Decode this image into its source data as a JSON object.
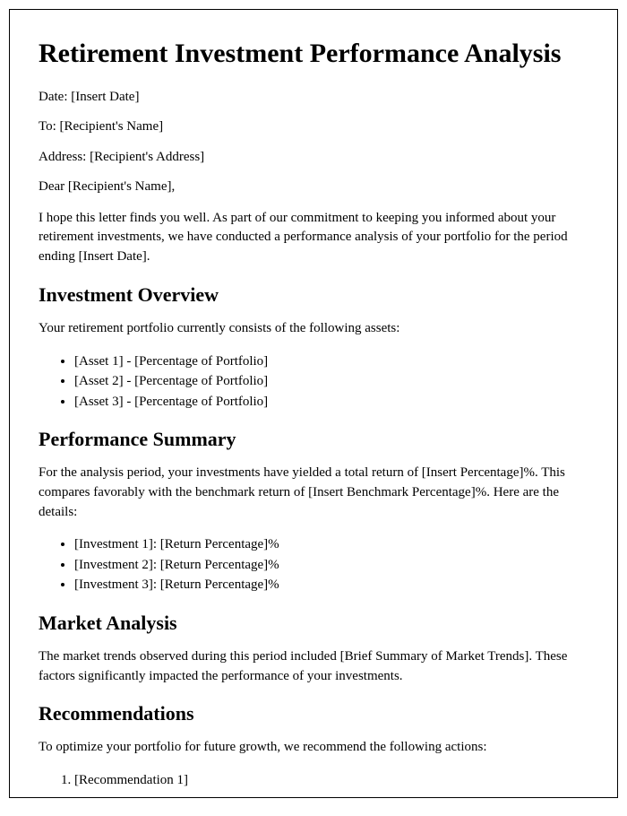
{
  "title": "Retirement Investment Performance Analysis",
  "meta": {
    "date": "Date: [Insert Date]",
    "to": "To: [Recipient's Name]",
    "address": "Address: [Recipient's Address]",
    "salutation": "Dear [Recipient's Name],"
  },
  "intro": "I hope this letter finds you well. As part of our commitment to keeping you informed about your retirement investments, we have conducted a performance analysis of your portfolio for the period ending [Insert Date].",
  "sections": {
    "overview": {
      "heading": "Investment Overview",
      "lead": "Your retirement portfolio currently consists of the following assets:",
      "items": [
        "[Asset 1] - [Percentage of Portfolio]",
        "[Asset 2] - [Percentage of Portfolio]",
        "[Asset 3] - [Percentage of Portfolio]"
      ]
    },
    "performance": {
      "heading": "Performance Summary",
      "lead": "For the analysis period, your investments have yielded a total return of [Insert Percentage]%. This compares favorably with the benchmark return of [Insert Benchmark Percentage]%. Here are the details:",
      "items": [
        "[Investment 1]: [Return Percentage]%",
        "[Investment 2]: [Return Percentage]%",
        "[Investment 3]: [Return Percentage]%"
      ]
    },
    "market": {
      "heading": "Market Analysis",
      "lead": "The market trends observed during this period included [Brief Summary of Market Trends]. These factors significantly impacted the performance of your investments."
    },
    "recommendations": {
      "heading": "Recommendations",
      "lead": "To optimize your portfolio for future growth, we recommend the following actions:",
      "items": [
        "[Recommendation 1]"
      ]
    }
  },
  "style": {
    "title_fontsize": 30,
    "heading_fontsize": 22,
    "body_fontsize": 15,
    "text_color": "#000000",
    "background_color": "#ffffff",
    "border_color": "#000000",
    "font_family": "Georgia, Times New Roman, serif"
  }
}
